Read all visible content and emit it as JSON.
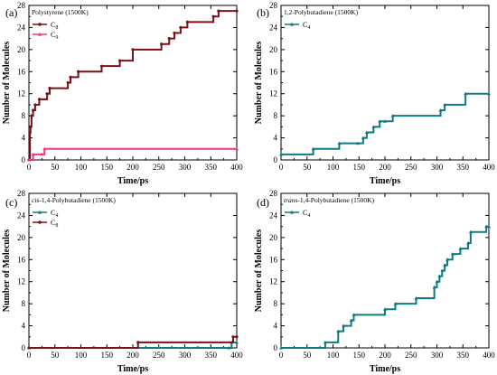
{
  "chart_data": [
    {
      "panel_label": "(a)",
      "legend_title": "Polystyrene (1500K)",
      "title_prefix": "",
      "type": "line",
      "xlabel": "Time/ps",
      "ylabel": "Number of Molecules",
      "xlim": [
        0,
        400
      ],
      "ylim": [
        0,
        28
      ],
      "xticks": [
        0,
        50,
        100,
        150,
        200,
        250,
        300,
        350,
        400
      ],
      "yticks": [
        0,
        4,
        8,
        12,
        16,
        20,
        24,
        28
      ],
      "legend_position": "top-left",
      "series": [
        {
          "name": "C",
          "subscript": "8",
          "color": "#7b1116",
          "marker": "circle",
          "x": [
            0,
            2,
            3,
            5,
            8,
            12,
            20,
            35,
            40,
            75,
            80,
            95,
            140,
            175,
            200,
            255,
            270,
            280,
            292,
            305,
            355,
            365,
            400
          ],
          "y": [
            0,
            5,
            6,
            8,
            9,
            10,
            11,
            12,
            13,
            14,
            15,
            16,
            17,
            18,
            20,
            21,
            22,
            23,
            24,
            25,
            26,
            27,
            27
          ]
        },
        {
          "name": "C",
          "subscript": "9",
          "color": "#e8388a",
          "marker": "triangle",
          "x": [
            0,
            8,
            25,
            30,
            400
          ],
          "y": [
            0,
            1,
            1,
            2,
            2
          ]
        }
      ]
    },
    {
      "panel_label": "(b)",
      "legend_title": "1,2-Polybutadiene (1500K)",
      "title_prefix": "",
      "type": "line",
      "xlabel": "Time/ps",
      "ylabel": "Number of Molecules",
      "xlim": [
        0,
        400
      ],
      "ylim": [
        0,
        28
      ],
      "xticks": [
        0,
        50,
        100,
        150,
        200,
        250,
        300,
        350,
        400
      ],
      "yticks": [
        0,
        4,
        8,
        12,
        16,
        20,
        24,
        28
      ],
      "legend_position": "top-left",
      "series": [
        {
          "name": "C",
          "subscript": "4",
          "color": "#0f7b80",
          "marker": "triangle",
          "x": [
            0,
            62,
            112,
            148,
            158,
            165,
            178,
            190,
            200,
            215,
            307,
            315,
            355,
            400
          ],
          "y": [
            1,
            2,
            3,
            3,
            4,
            5,
            6,
            7,
            7,
            8,
            9,
            10,
            12,
            12
          ]
        }
      ]
    },
    {
      "panel_label": "(c)",
      "legend_title": "-1,4-Polybutadiene (1500K)",
      "title_prefix": "cis",
      "type": "line",
      "xlabel": "Time/ps",
      "ylabel": "Number of Molecules",
      "xlim": [
        0,
        400
      ],
      "ylim": [
        0,
        28
      ],
      "xticks": [
        0,
        50,
        100,
        150,
        200,
        250,
        300,
        350,
        400
      ],
      "yticks": [
        0,
        4,
        8,
        12,
        16,
        20,
        24,
        28
      ],
      "legend_position": "top-left",
      "series": [
        {
          "name": "C",
          "subscript": "4",
          "color": "#0f7b80",
          "marker": "triangle",
          "x": [
            0,
            385,
            390,
            400
          ],
          "y": [
            0,
            0,
            1,
            1
          ]
        },
        {
          "name": "C",
          "subscript": "8",
          "color": "#7b1116",
          "marker": "circle",
          "x": [
            0,
            210,
            393,
            400
          ],
          "y": [
            0,
            1,
            2,
            2
          ]
        }
      ]
    },
    {
      "panel_label": "(d)",
      "legend_title": "-1,4-Polybutadiene (1500K)",
      "title_prefix": "trans",
      "type": "line",
      "xlabel": "Time/ps",
      "ylabel": "Number of Molecules",
      "xlim": [
        0,
        400
      ],
      "ylim": [
        0,
        28
      ],
      "xticks": [
        0,
        50,
        100,
        150,
        200,
        250,
        300,
        350,
        400
      ],
      "yticks": [
        0,
        4,
        8,
        12,
        16,
        20,
        24,
        28
      ],
      "legend_position": "top-left",
      "series": [
        {
          "name": "C",
          "subscript": "4",
          "color": "#0f7b80",
          "marker": "triangle",
          "x": [
            0,
            85,
            110,
            120,
            135,
            140,
            200,
            220,
            260,
            295,
            300,
            305,
            310,
            315,
            320,
            330,
            345,
            360,
            365,
            395,
            400
          ],
          "y": [
            0,
            1,
            3,
            4,
            5,
            6,
            7,
            8,
            9,
            11,
            12,
            13,
            14,
            15,
            16,
            17,
            18,
            19,
            21,
            22,
            22
          ]
        }
      ]
    }
  ]
}
